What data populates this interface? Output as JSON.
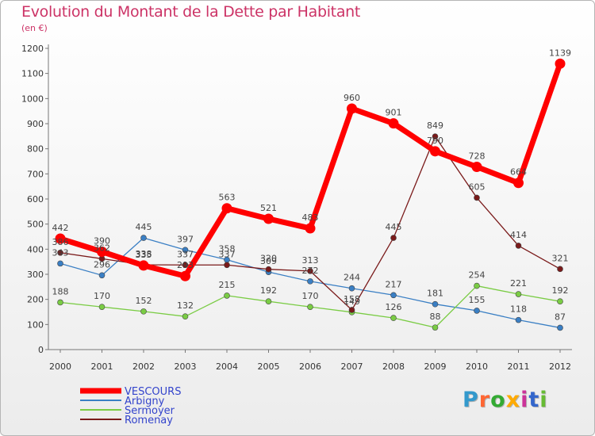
{
  "chart_data": {
    "type": "line",
    "title": "Evolution du Montant de la Dette par Habitant",
    "subtitle": "(en €)",
    "xlabel": "",
    "ylabel": "",
    "x": [
      "2000",
      "2001",
      "2002",
      "2003",
      "2004",
      "2005",
      "2006",
      "2007",
      "2008",
      "2009",
      "2010",
      "2011",
      "2012"
    ],
    "ylim": [
      0,
      1200
    ],
    "yticks": [
      0,
      100,
      200,
      300,
      400,
      500,
      600,
      700,
      800,
      900,
      1000,
      1100,
      1200
    ],
    "grid": false,
    "legend_position": "bottom-left",
    "series": [
      {
        "name": "VESCOURS",
        "color": "#ff0000",
        "values": [
          442,
          390,
          335,
          293,
          563,
          521,
          483,
          960,
          901,
          790,
          728,
          664,
          1139
        ]
      },
      {
        "name": "Arbigny",
        "color": "#3a7fc4",
        "values": [
          343,
          296,
          445,
          397,
          358,
          309,
          272,
          244,
          217,
          181,
          155,
          118,
          87
        ]
      },
      {
        "name": "Sermoyer",
        "color": "#7acc44",
        "values": [
          188,
          170,
          152,
          132,
          215,
          192,
          170,
          149,
          126,
          88,
          254,
          221,
          192
        ]
      },
      {
        "name": "Romenay",
        "color": "#7a1a1a",
        "values": [
          386,
          362,
          338,
          337,
          337,
          320,
          313,
          158,
          445,
          849,
          605,
          414,
          321
        ]
      }
    ]
  },
  "brand": {
    "letters": [
      "P",
      "r",
      "o",
      "x",
      "i",
      "t",
      "i"
    ]
  }
}
